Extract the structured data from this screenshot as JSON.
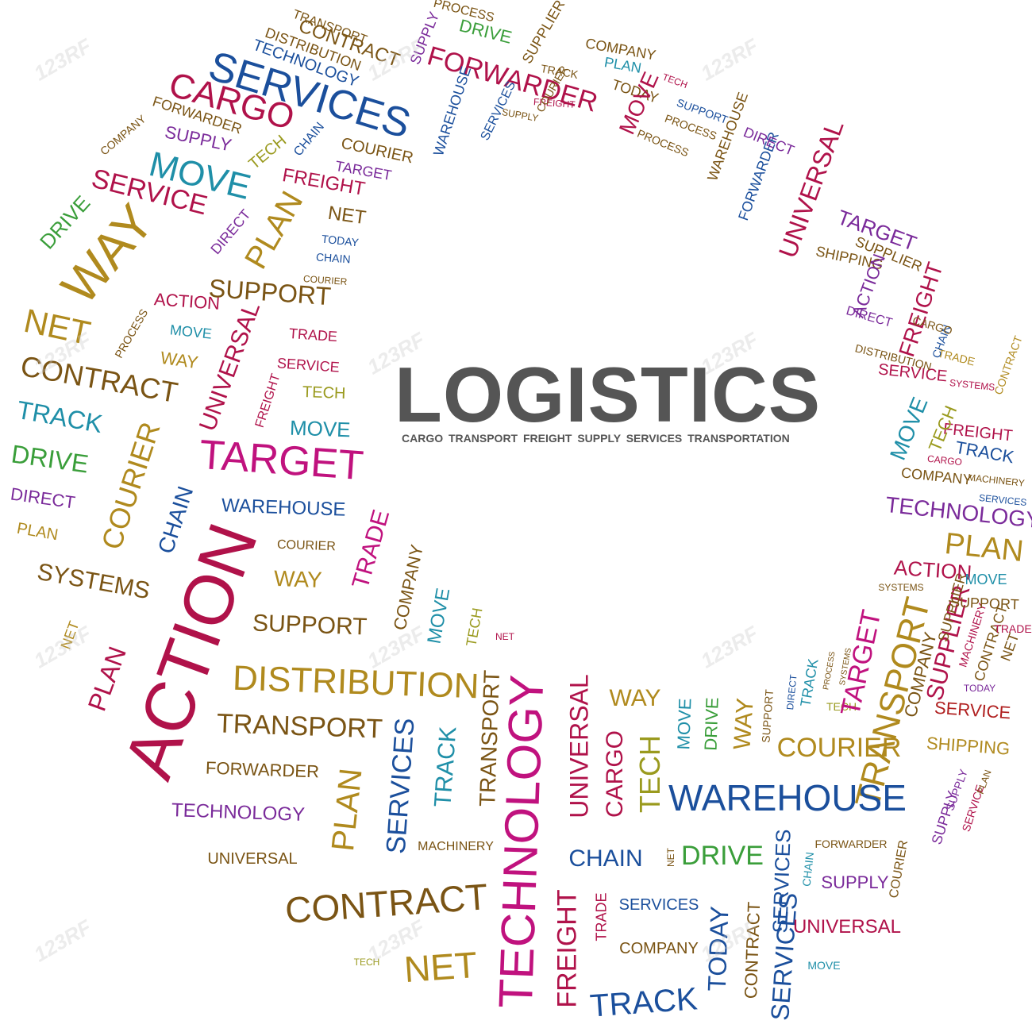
{
  "title": "LOGISTICS",
  "subtitle": "CARGO TRANSPORT FREIGHT SUPPLY SERVICES TRANSPORTATION",
  "watermark": "123RF",
  "colors": {
    "title": "#555555",
    "gold": "#b08a1e",
    "brown": "#7a5414",
    "magenta": "#c0127e",
    "crimson": "#b0124a",
    "blue": "#1b4f9c",
    "teal": "#1f8fa8",
    "green": "#3a9e3a",
    "purple": "#7a2a9a",
    "olive": "#9a9a1e",
    "red": "#b02020"
  },
  "words": [
    "SERVICES",
    "CARGO",
    "FORWARDER",
    "COMPANY",
    "SUPPLY",
    "MOVE",
    "SERVICE",
    "DRIVE",
    "WAY",
    "TECH",
    "CHAIN",
    "COURIER",
    "FREIGHT",
    "TARGET",
    "NET",
    "TODAY",
    "DIRECT",
    "PLAN",
    "CHAIN",
    "COURIER",
    "SUPPORT",
    "ACTION",
    "NET",
    "PROCESS",
    "MOVE",
    "TRADE",
    "WAY",
    "SERVICE",
    "CONTRACT",
    "UNIVERSAL",
    "FREIGHT",
    "TECH",
    "MOVE",
    "TRACK",
    "DRIVE",
    "TARGET",
    "DIRECT",
    "COURIER",
    "CHAIN",
    "WAREHOUSE",
    "PLAN",
    "COURIER",
    "TRADE",
    "SYSTEMS",
    "ACTION",
    "WAY",
    "SUPPORT",
    "COMPANY",
    "MOVE",
    "TECH",
    "NET",
    "PLAN",
    "NET",
    "DISTRIBUTION",
    "TRANSPORT",
    "FORWARDER",
    "TECHNOLOGY",
    "UNIVERSAL",
    "CONTRACT",
    "TECH",
    "NET",
    "PLAN",
    "SERVICES",
    "TRACK",
    "TRANSPORT",
    "TECHNOLOGY",
    "MACHINERY",
    "FREIGHT",
    "TRADE",
    "UNIVERSAL",
    "CARGO",
    "TECH",
    "WAY",
    "MOVE",
    "DRIVE",
    "WAY",
    "SUPPORT",
    "DIRECT",
    "TRACK",
    "PROCESS",
    "SYSTEMS",
    "TECH",
    "TARGET",
    "TRANSPORT",
    "COMPANY",
    "SUPPLIER",
    "MACHINERY",
    "CONTRACT",
    "NET",
    "WAREHOUSE",
    "COURIER",
    "SHIPPING",
    "CHAIN",
    "NET",
    "DRIVE",
    "SERVICES",
    "CHAIN",
    "FORWARDER",
    "SUPPLY",
    "COURIER",
    "SERVICES",
    "COMPANY",
    "TODAY",
    "CONTRACT",
    "SERVICES",
    "UNIVERSAL",
    "MOVE",
    "TRACK",
    "SUPPLY",
    "SERVICE",
    "TODAY",
    "TRADE",
    "SUPPLY",
    "PLAN",
    "SERVICE",
    "SYSTEMS",
    "SUPPLIER",
    "SUPPORT",
    "ACTION",
    "MOVE",
    "PLAN",
    "TECHNOLOGY",
    "COMPANY",
    "TRACK",
    "MACHINERY",
    "SERVICES",
    "FREIGHT",
    "CARGO",
    "TECH",
    "MOVE",
    "SYSTEMS",
    "SERVICE",
    "DISTRIBUTION",
    "FREIGHT",
    "TRADE",
    "CHAIN",
    "DIRECT",
    "CONTRACT",
    "SHIPPING",
    "ACTION",
    "TARGET",
    "UNIVERSAL",
    "CARGO",
    "SUPPLIER",
    "FORWARDER",
    "DIRECT",
    "WAREHOUSE",
    "SUPPORT",
    "TODAY",
    "PROCESS",
    "COMPANY",
    "PLAN",
    "MOVE",
    "TECH",
    "PROCESS",
    "DRIVE",
    "SUPPLY",
    "DISTRIBUTION",
    "CONTRACT",
    "TRANSPORT",
    "SUPPLIER",
    "TECHNOLOGY",
    "FORWARDER",
    "PROCESS",
    "WAREHOUSE",
    "SUPPLY",
    "SERVICES",
    "FREIGHT",
    "COURIER",
    "TRACK",
    "MACHINERY",
    "WAY",
    "TECH"
  ]
}
